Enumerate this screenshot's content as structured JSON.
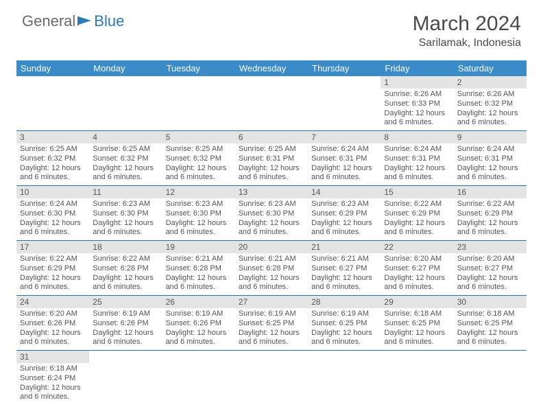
{
  "logo": {
    "part1": "General",
    "part2": "Blue"
  },
  "title": "March 2024",
  "location": "Sarilamak, Indonesia",
  "colors": {
    "header_bg": "#3b8bc8",
    "header_text": "#ffffff",
    "daynum_bg": "#e4e4e4",
    "row_border": "#2e6fa8",
    "body_text": "#555555",
    "logo_blue": "#2e79b8"
  },
  "weekdays": [
    "Sunday",
    "Monday",
    "Tuesday",
    "Wednesday",
    "Thursday",
    "Friday",
    "Saturday"
  ],
  "grid": [
    [
      null,
      null,
      null,
      null,
      null,
      {
        "n": "1",
        "sr": "6:26 AM",
        "ss": "6:33 PM",
        "dl": "12 hours and 6 minutes."
      },
      {
        "n": "2",
        "sr": "6:26 AM",
        "ss": "6:32 PM",
        "dl": "12 hours and 6 minutes."
      }
    ],
    [
      {
        "n": "3",
        "sr": "6:25 AM",
        "ss": "6:32 PM",
        "dl": "12 hours and 6 minutes."
      },
      {
        "n": "4",
        "sr": "6:25 AM",
        "ss": "6:32 PM",
        "dl": "12 hours and 6 minutes."
      },
      {
        "n": "5",
        "sr": "6:25 AM",
        "ss": "6:32 PM",
        "dl": "12 hours and 6 minutes."
      },
      {
        "n": "6",
        "sr": "6:25 AM",
        "ss": "6:31 PM",
        "dl": "12 hours and 6 minutes."
      },
      {
        "n": "7",
        "sr": "6:24 AM",
        "ss": "6:31 PM",
        "dl": "12 hours and 6 minutes."
      },
      {
        "n": "8",
        "sr": "6:24 AM",
        "ss": "6:31 PM",
        "dl": "12 hours and 6 minutes."
      },
      {
        "n": "9",
        "sr": "6:24 AM",
        "ss": "6:31 PM",
        "dl": "12 hours and 6 minutes."
      }
    ],
    [
      {
        "n": "10",
        "sr": "6:24 AM",
        "ss": "6:30 PM",
        "dl": "12 hours and 6 minutes."
      },
      {
        "n": "11",
        "sr": "6:23 AM",
        "ss": "6:30 PM",
        "dl": "12 hours and 6 minutes."
      },
      {
        "n": "12",
        "sr": "6:23 AM",
        "ss": "6:30 PM",
        "dl": "12 hours and 6 minutes."
      },
      {
        "n": "13",
        "sr": "6:23 AM",
        "ss": "6:30 PM",
        "dl": "12 hours and 6 minutes."
      },
      {
        "n": "14",
        "sr": "6:23 AM",
        "ss": "6:29 PM",
        "dl": "12 hours and 6 minutes."
      },
      {
        "n": "15",
        "sr": "6:22 AM",
        "ss": "6:29 PM",
        "dl": "12 hours and 6 minutes."
      },
      {
        "n": "16",
        "sr": "6:22 AM",
        "ss": "6:29 PM",
        "dl": "12 hours and 6 minutes."
      }
    ],
    [
      {
        "n": "17",
        "sr": "6:22 AM",
        "ss": "6:29 PM",
        "dl": "12 hours and 6 minutes."
      },
      {
        "n": "18",
        "sr": "6:22 AM",
        "ss": "6:28 PM",
        "dl": "12 hours and 6 minutes."
      },
      {
        "n": "19",
        "sr": "6:21 AM",
        "ss": "6:28 PM",
        "dl": "12 hours and 6 minutes."
      },
      {
        "n": "20",
        "sr": "6:21 AM",
        "ss": "6:28 PM",
        "dl": "12 hours and 6 minutes."
      },
      {
        "n": "21",
        "sr": "6:21 AM",
        "ss": "6:27 PM",
        "dl": "12 hours and 6 minutes."
      },
      {
        "n": "22",
        "sr": "6:20 AM",
        "ss": "6:27 PM",
        "dl": "12 hours and 6 minutes."
      },
      {
        "n": "23",
        "sr": "6:20 AM",
        "ss": "6:27 PM",
        "dl": "12 hours and 6 minutes."
      }
    ],
    [
      {
        "n": "24",
        "sr": "6:20 AM",
        "ss": "6:26 PM",
        "dl": "12 hours and 6 minutes."
      },
      {
        "n": "25",
        "sr": "6:19 AM",
        "ss": "6:26 PM",
        "dl": "12 hours and 6 minutes."
      },
      {
        "n": "26",
        "sr": "6:19 AM",
        "ss": "6:26 PM",
        "dl": "12 hours and 6 minutes."
      },
      {
        "n": "27",
        "sr": "6:19 AM",
        "ss": "6:25 PM",
        "dl": "12 hours and 6 minutes."
      },
      {
        "n": "28",
        "sr": "6:19 AM",
        "ss": "6:25 PM",
        "dl": "12 hours and 6 minutes."
      },
      {
        "n": "29",
        "sr": "6:18 AM",
        "ss": "6:25 PM",
        "dl": "12 hours and 6 minutes."
      },
      {
        "n": "30",
        "sr": "6:18 AM",
        "ss": "6:25 PM",
        "dl": "12 hours and 6 minutes."
      }
    ],
    [
      {
        "n": "31",
        "sr": "6:18 AM",
        "ss": "6:24 PM",
        "dl": "12 hours and 6 minutes."
      },
      null,
      null,
      null,
      null,
      null,
      null
    ]
  ],
  "labels": {
    "sunrise": "Sunrise:",
    "sunset": "Sunset:",
    "daylight": "Daylight:"
  }
}
